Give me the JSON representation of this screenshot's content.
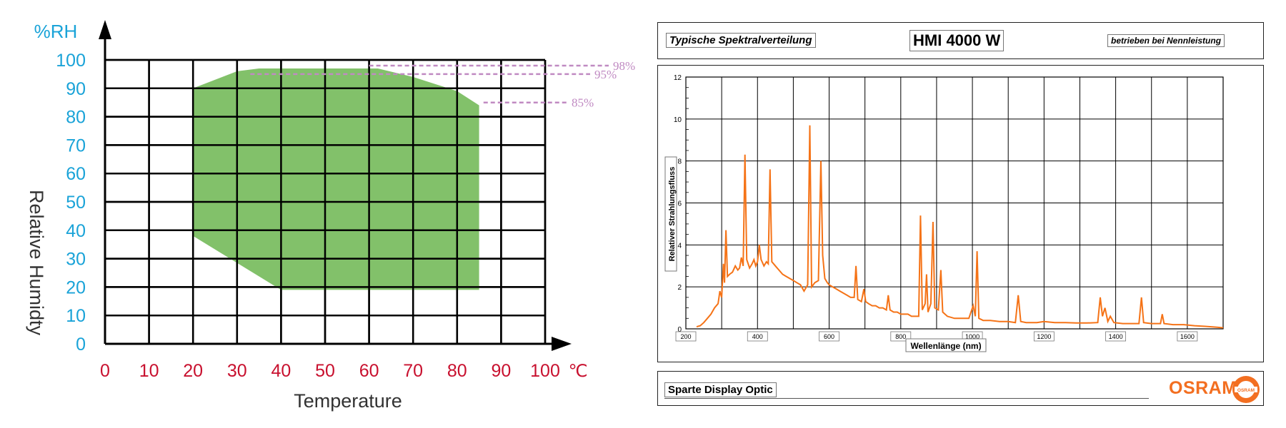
{
  "colors": {
    "axis_blue": "#1aa3d8",
    "axis_red": "#c8102e",
    "zone_green": "#82c16a",
    "dashed_purple": "#c08ac2",
    "spectrum_orange": "#f57317",
    "brand_orange": "#f36f21",
    "grid": "#000000"
  },
  "chart_data": [
    {
      "type": "area",
      "title": "",
      "ylabel": "Relative Humidty",
      "ylabel_unit": "%RH",
      "xlabel": "Temperature",
      "xlabel_unit": "℃",
      "xlim": [
        0,
        100
      ],
      "ylim": [
        0,
        100
      ],
      "x_ticks": [
        "0",
        "10",
        "20",
        "30",
        "40",
        "50",
        "60",
        "70",
        "80",
        "90",
        "100"
      ],
      "y_ticks": [
        "0",
        "10",
        "20",
        "30",
        "40",
        "50",
        "60",
        "70",
        "80",
        "90",
        "100"
      ],
      "grid": true,
      "series": [
        {
          "values": [
            [
              20,
              90
            ],
            [
              30,
              96
            ],
            [
              35,
              97
            ],
            [
              62,
              97
            ],
            [
              70,
              94
            ],
            [
              80,
              89
            ],
            [
              85,
              84
            ],
            [
              85,
              19
            ],
            [
              40,
              19
            ],
            [
              20,
              38
            ]
          ]
        }
      ],
      "annotations": [
        {
          "text": "98%",
          "y": 98,
          "x_from": 60
        },
        {
          "text": "95%",
          "y": 95,
          "x_from": 33
        },
        {
          "text": "85%",
          "y": 85,
          "x_from": 86
        }
      ]
    },
    {
      "type": "line",
      "title": "HMI 4000 W",
      "xlabel": "Wellenlänge (nm)",
      "ylabel": "Relativer Strahlungsfluss",
      "xlim": [
        200,
        1700
      ],
      "ylim": [
        0,
        12
      ],
      "x_ticks": [
        "200",
        "400",
        "600",
        "800",
        "1000",
        "1200",
        "1400",
        "1600"
      ],
      "y_ticks": [
        "0",
        "2",
        "4",
        "6",
        "8",
        "10",
        "12"
      ],
      "grid": true,
      "series": [
        {
          "values": [
            [
              230,
              0.1
            ],
            [
              240,
              0.15
            ],
            [
              250,
              0.3
            ],
            [
              260,
              0.5
            ],
            [
              270,
              0.7
            ],
            [
              280,
              1.0
            ],
            [
              290,
              1.2
            ],
            [
              295,
              1.8
            ],
            [
              300,
              1.5
            ],
            [
              305,
              3.1
            ],
            [
              308,
              2.2
            ],
            [
              312,
              4.7
            ],
            [
              316,
              2.5
            ],
            [
              322,
              2.6
            ],
            [
              330,
              2.7
            ],
            [
              338,
              3.0
            ],
            [
              345,
              2.8
            ],
            [
              350,
              2.9
            ],
            [
              355,
              3.4
            ],
            [
              360,
              3.0
            ],
            [
              365,
              8.3
            ],
            [
              370,
              3.3
            ],
            [
              378,
              2.9
            ],
            [
              385,
              3.1
            ],
            [
              390,
              3.3
            ],
            [
              395,
              3.0
            ],
            [
              400,
              3.2
            ],
            [
              405,
              4.0
            ],
            [
              410,
              3.3
            ],
            [
              418,
              3.0
            ],
            [
              425,
              3.2
            ],
            [
              430,
              3.1
            ],
            [
              435,
              7.6
            ],
            [
              440,
              3.2
            ],
            [
              450,
              3.0
            ],
            [
              460,
              2.8
            ],
            [
              470,
              2.6
            ],
            [
              480,
              2.5
            ],
            [
              490,
              2.4
            ],
            [
              500,
              2.3
            ],
            [
              510,
              2.2
            ],
            [
              520,
              2.1
            ],
            [
              530,
              1.8
            ],
            [
              540,
              2.1
            ],
            [
              546,
              9.7
            ],
            [
              551,
              2.0
            ],
            [
              560,
              2.2
            ],
            [
              570,
              2.3
            ],
            [
              577,
              8.0
            ],
            [
              582,
              3.5
            ],
            [
              588,
              2.4
            ],
            [
              595,
              2.2
            ],
            [
              600,
              2.1
            ],
            [
              610,
              2.0
            ],
            [
              620,
              1.9
            ],
            [
              630,
              1.8
            ],
            [
              640,
              1.7
            ],
            [
              650,
              1.6
            ],
            [
              660,
              1.5
            ],
            [
              670,
              1.5
            ],
            [
              675,
              3.0
            ],
            [
              680,
              1.4
            ],
            [
              690,
              1.3
            ],
            [
              697,
              1.9
            ],
            [
              702,
              1.3
            ],
            [
              710,
              1.2
            ],
            [
              720,
              1.1
            ],
            [
              730,
              1.1
            ],
            [
              740,
              1.0
            ],
            [
              750,
              1.0
            ],
            [
              760,
              0.9
            ],
            [
              765,
              1.6
            ],
            [
              770,
              0.9
            ],
            [
              780,
              0.8
            ],
            [
              790,
              0.8
            ],
            [
              800,
              0.7
            ],
            [
              810,
              0.7
            ],
            [
              820,
              0.7
            ],
            [
              830,
              0.6
            ],
            [
              840,
              0.6
            ],
            [
              850,
              0.6
            ],
            [
              855,
              5.4
            ],
            [
              860,
              0.9
            ],
            [
              868,
              1.2
            ],
            [
              872,
              2.6
            ],
            [
              876,
              0.8
            ],
            [
              884,
              1.2
            ],
            [
              890,
              5.1
            ],
            [
              895,
              1.0
            ],
            [
              905,
              0.9
            ],
            [
              912,
              2.8
            ],
            [
              917,
              0.8
            ],
            [
              930,
              0.6
            ],
            [
              950,
              0.5
            ],
            [
              970,
              0.5
            ],
            [
              990,
              0.5
            ],
            [
              1002,
              1.1
            ],
            [
              1008,
              0.6
            ],
            [
              1013,
              3.7
            ],
            [
              1018,
              0.5
            ],
            [
              1030,
              0.4
            ],
            [
              1050,
              0.4
            ],
            [
              1075,
              0.35
            ],
            [
              1100,
              0.35
            ],
            [
              1120,
              0.3
            ],
            [
              1128,
              1.6
            ],
            [
              1135,
              0.35
            ],
            [
              1150,
              0.3
            ],
            [
              1180,
              0.3
            ],
            [
              1200,
              0.35
            ],
            [
              1230,
              0.3
            ],
            [
              1260,
              0.3
            ],
            [
              1290,
              0.28
            ],
            [
              1320,
              0.28
            ],
            [
              1350,
              0.3
            ],
            [
              1357,
              1.5
            ],
            [
              1363,
              0.6
            ],
            [
              1370,
              1.0
            ],
            [
              1378,
              0.35
            ],
            [
              1385,
              0.6
            ],
            [
              1395,
              0.3
            ],
            [
              1420,
              0.25
            ],
            [
              1445,
              0.25
            ],
            [
              1465,
              0.25
            ],
            [
              1472,
              1.5
            ],
            [
              1478,
              0.3
            ],
            [
              1500,
              0.25
            ],
            [
              1525,
              0.25
            ],
            [
              1530,
              0.7
            ],
            [
              1535,
              0.25
            ],
            [
              1560,
              0.2
            ],
            [
              1590,
              0.2
            ],
            [
              1620,
              0.15
            ],
            [
              1650,
              0.12
            ],
            [
              1680,
              0.08
            ],
            [
              1700,
              0.05
            ]
          ]
        }
      ],
      "annotations": [
        {
          "text": "Typische Spektralverteilung"
        },
        {
          "text": "betrieben bei Nennleistung"
        },
        {
          "text": "Sparte Display Optic"
        }
      ]
    }
  ],
  "footer": {
    "brand": "OSRAM",
    "logo_text": "OSRAM"
  }
}
